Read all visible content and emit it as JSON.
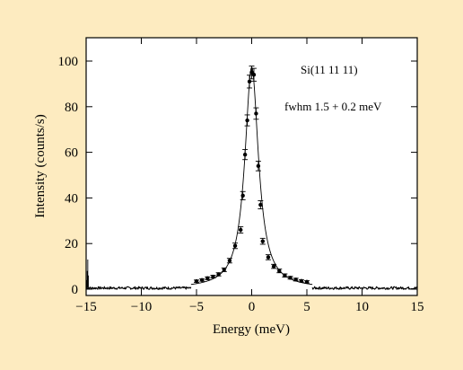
{
  "chart_data": {
    "type": "scatter",
    "xlabel": "Energy (meV)",
    "ylabel": "Intensity (counts/s)",
    "xlim": [
      -15,
      15
    ],
    "ylim": [
      -2,
      110
    ],
    "xticks": [
      -15,
      -10,
      -5,
      0,
      5,
      10,
      15
    ],
    "yticks": [
      0,
      20,
      40,
      60,
      80,
      100
    ],
    "xtick_labels": [
      "−15",
      "−10",
      "−5",
      "0",
      "5",
      "10",
      "15"
    ],
    "ytick_labels": [
      "0",
      "20",
      "40",
      "60",
      "80",
      "100"
    ],
    "annotations": [
      "Si(11 11 11)",
      "fwhm 1.5 + 0.2 meV"
    ],
    "grid": false,
    "series": [
      {
        "type": "scatter-errorbar",
        "points": [
          {
            "x": -5.0,
            "y": 3.5,
            "err": 0.5
          },
          {
            "x": -4.5,
            "y": 4.0,
            "err": 0.5
          },
          {
            "x": -4.0,
            "y": 4.8,
            "err": 0.6
          },
          {
            "x": -3.5,
            "y": 5.5,
            "err": 0.6
          },
          {
            "x": -3.0,
            "y": 6.5,
            "err": 0.7
          },
          {
            "x": -2.5,
            "y": 8.5,
            "err": 0.8
          },
          {
            "x": -2.0,
            "y": 12.5,
            "err": 1.0
          },
          {
            "x": -1.5,
            "y": 19.0,
            "err": 1.2
          },
          {
            "x": -1.0,
            "y": 26.0,
            "err": 1.4
          },
          {
            "x": -0.8,
            "y": 41.0,
            "err": 1.8
          },
          {
            "x": -0.6,
            "y": 59.0,
            "err": 2.2
          },
          {
            "x": -0.4,
            "y": 74.0,
            "err": 2.4
          },
          {
            "x": -0.2,
            "y": 91.0,
            "err": 2.8
          },
          {
            "x": 0.0,
            "y": 95.0,
            "err": 2.8
          },
          {
            "x": 0.2,
            "y": 94.0,
            "err": 2.8
          },
          {
            "x": 0.4,
            "y": 77.0,
            "err": 2.5
          },
          {
            "x": 0.6,
            "y": 54.0,
            "err": 2.1
          },
          {
            "x": 0.8,
            "y": 37.0,
            "err": 1.8
          },
          {
            "x": 1.0,
            "y": 21.0,
            "err": 1.3
          },
          {
            "x": 1.5,
            "y": 14.0,
            "err": 1.1
          },
          {
            "x": 2.0,
            "y": 10.0,
            "err": 0.9
          },
          {
            "x": 2.5,
            "y": 8.0,
            "err": 0.8
          },
          {
            "x": 3.0,
            "y": 6.0,
            "err": 0.7
          },
          {
            "x": 3.5,
            "y": 5.0,
            "err": 0.6
          },
          {
            "x": 4.0,
            "y": 4.2,
            "err": 0.6
          },
          {
            "x": 4.5,
            "y": 3.6,
            "err": 0.5
          },
          {
            "x": 5.0,
            "y": 3.2,
            "err": 0.5
          }
        ]
      },
      {
        "type": "line",
        "model": "lorentzian",
        "center": 0,
        "fwhm": 1.5,
        "amplitude": 97,
        "baseline": 0.3,
        "range": [
          -5.5,
          5.5
        ]
      },
      {
        "type": "noisy-background",
        "baseline": 0.5,
        "noise": 0.6,
        "left_range": [
          -15,
          -5.5
        ],
        "right_range": [
          5.5,
          15
        ],
        "edge_spikes": [
          {
            "x": -14.95,
            "y": 4
          },
          {
            "x": -14.9,
            "y": 8
          },
          {
            "x": -14.85,
            "y": 13
          },
          {
            "x": -14.8,
            "y": 6
          }
        ]
      }
    ]
  }
}
